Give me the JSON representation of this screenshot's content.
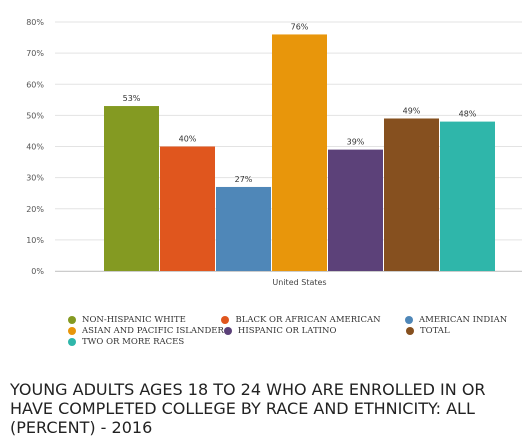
{
  "chart_data": {
    "type": "bar",
    "title": "YOUNG ADULTS AGES 18 TO 24 WHO ARE ENROLLED IN OR HAVE COMPLETED COLLEGE BY RACE AND ETHNICITY: ALL (PERCENT) - 2016",
    "categories": [
      "United States"
    ],
    "series": [
      {
        "name": "NON-HISPANIC WHITE",
        "values": [
          53
        ],
        "label": "53%",
        "color": "#849a22"
      },
      {
        "name": "BLACK OR AFRICAN AMERICAN",
        "values": [
          40
        ],
        "label": "40%",
        "color": "#e0561e"
      },
      {
        "name": "AMERICAN INDIAN",
        "values": [
          27
        ],
        "label": "27%",
        "color": "#4f87b8"
      },
      {
        "name": "ASIAN AND PACIFIC ISLANDER",
        "values": [
          76
        ],
        "label": "76%",
        "color": "#e8960b"
      },
      {
        "name": "HISPANIC OR LATINO",
        "values": [
          39
        ],
        "label": "39%",
        "color": "#5c4179"
      },
      {
        "name": "TOTAL",
        "values": [
          49
        ],
        "label": "49%",
        "color": "#86501f"
      },
      {
        "name": "TWO OR MORE RACES",
        "values": [
          48
        ],
        "label": "48%",
        "color": "#2fb6aa"
      }
    ],
    "ylim": [
      0,
      80
    ],
    "y_ticks": [
      "0%",
      "10%",
      "20%",
      "30%",
      "40%",
      "50%",
      "60%",
      "70%",
      "80%"
    ],
    "grid": true,
    "legend_position": "bottom"
  }
}
